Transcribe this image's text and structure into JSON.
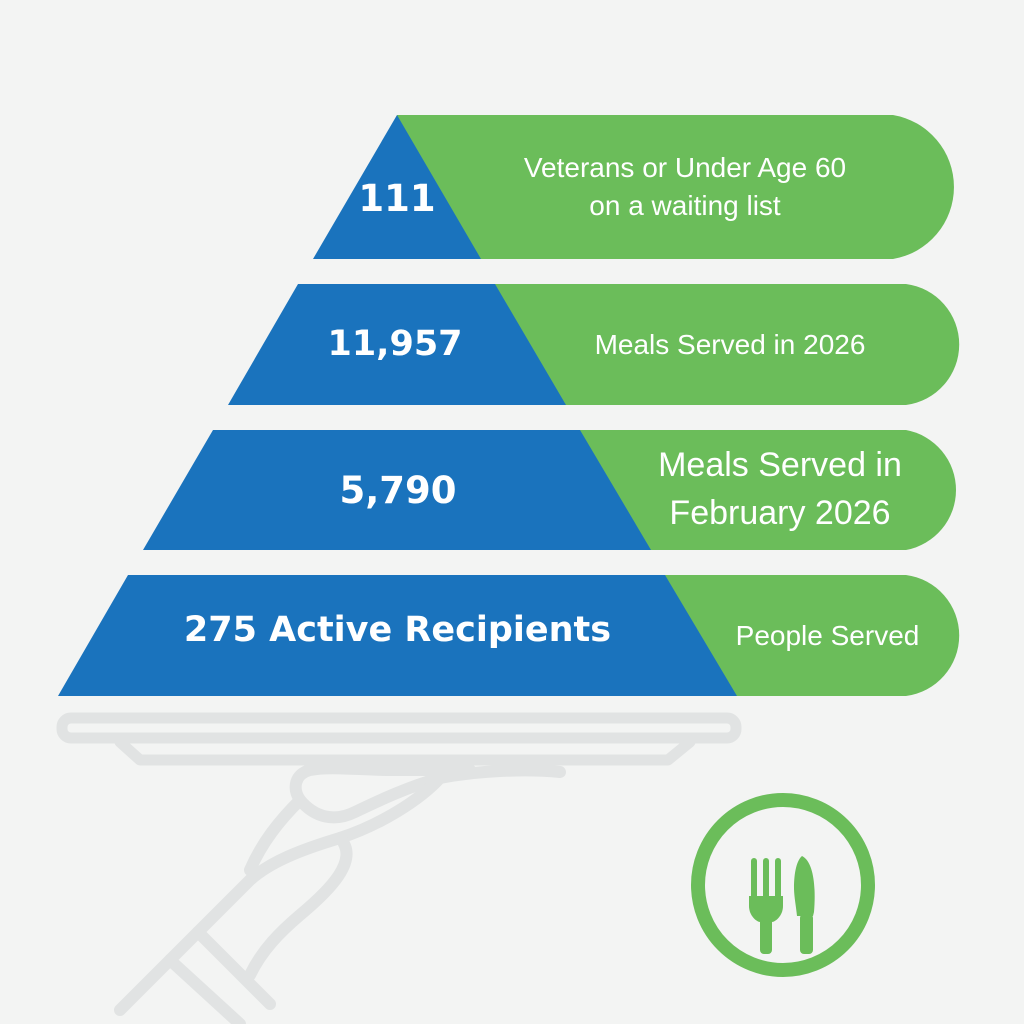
{
  "tiers": [
    {
      "value": "111",
      "description_lines": [
        "Veterans or Under Age 60",
        "on a waiting list"
      ]
    },
    {
      "value": "11,957",
      "description_lines": [
        "Meals Served in 2026"
      ]
    },
    {
      "value": "5,790",
      "description_lines": [
        "Meals Served in",
        "February 2026"
      ]
    },
    {
      "value": "275 Active Recipients",
      "description_lines": [
        "People Served"
      ]
    }
  ],
  "colors": {
    "background": "#f3f4f3",
    "pyramid_blue": "#1a73bd",
    "label_green": "#6bbd5a",
    "illustration_gray": "#e1e3e3",
    "text": "#ffffff"
  },
  "icons": [
    "serving-tray-icon",
    "hand-icon",
    "fork-knife-plate-icon"
  ]
}
